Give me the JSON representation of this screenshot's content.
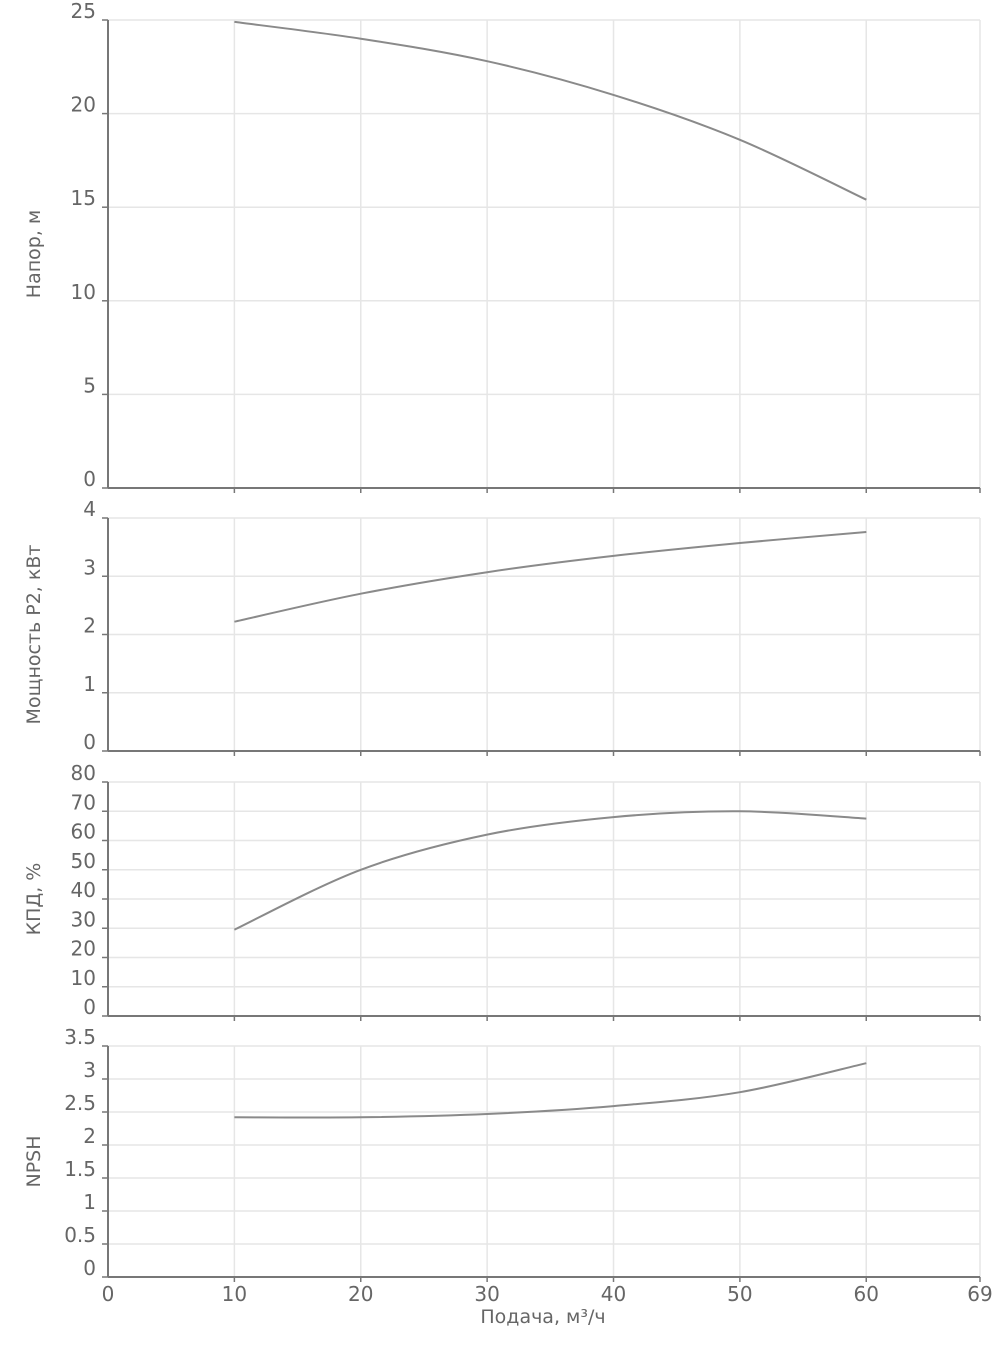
{
  "chart_data": {
    "type": "line",
    "x_axis": {
      "title": "Подача, м³/ч",
      "range": [
        0,
        69
      ],
      "ticks": [
        0,
        10,
        20,
        30,
        40,
        50,
        60,
        69
      ]
    },
    "panels": [
      {
        "id": "head",
        "ylabel": "Напор, м",
        "ylim": [
          0,
          25
        ],
        "yticks": [
          "0",
          "5",
          "10",
          "15",
          "20",
          "25"
        ],
        "series": [
          {
            "name": "Напор",
            "x": [
              10,
              20,
              30,
              40,
              50,
              60
            ],
            "y": [
              24.9,
              24.0,
              22.8,
              21.0,
              18.6,
              15.4
            ]
          }
        ]
      },
      {
        "id": "power",
        "ylabel": "Мощность P2, кВт",
        "ylim": [
          0,
          4
        ],
        "yticks": [
          "0",
          "1",
          "2",
          "3",
          "4"
        ],
        "series": [
          {
            "name": "Мощность P2",
            "x": [
              10,
              20,
              30,
              40,
              50,
              60
            ],
            "y": [
              2.22,
              2.7,
              3.07,
              3.35,
              3.57,
              3.76
            ]
          }
        ]
      },
      {
        "id": "efficiency",
        "ylabel": "КПД, %",
        "ylim": [
          0,
          80
        ],
        "yticks": [
          "0",
          "10",
          "20",
          "30",
          "40",
          "50",
          "60",
          "70",
          "80"
        ],
        "series": [
          {
            "name": "КПД",
            "x": [
              10,
              20,
              30,
              40,
              50,
              60
            ],
            "y": [
              29.5,
              50,
              62,
              68,
              70,
              67.5
            ]
          }
        ]
      },
      {
        "id": "npsh",
        "ylabel": "NPSH",
        "ylim": [
          0,
          3.5
        ],
        "yticks": [
          "0",
          "0.5",
          "1",
          "1.5",
          "2",
          "2.5",
          "3",
          "3.5"
        ],
        "series": [
          {
            "name": "NPSH",
            "x": [
              10,
              20,
              30,
              40,
              50,
              60
            ],
            "y": [
              2.42,
              2.42,
              2.47,
              2.59,
              2.8,
              3.24
            ]
          }
        ]
      }
    ]
  }
}
